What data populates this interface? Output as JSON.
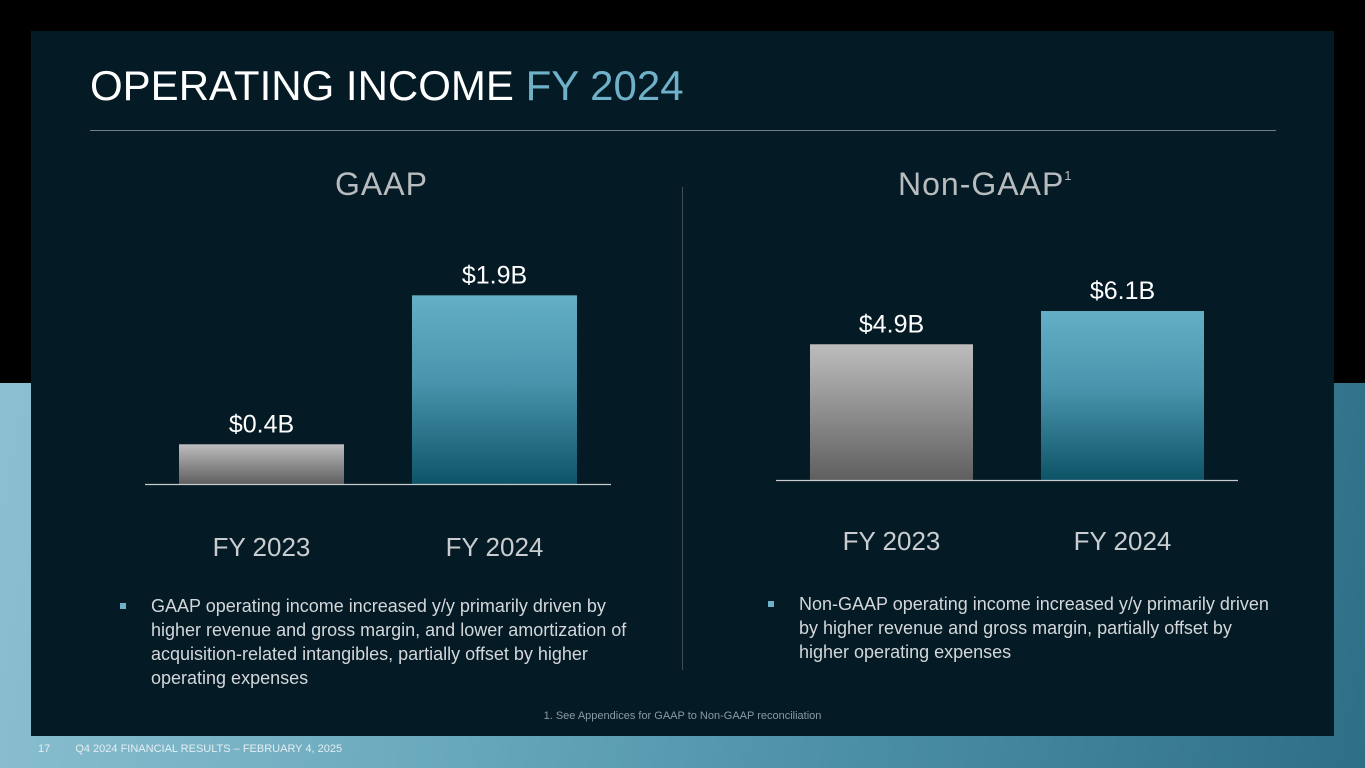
{
  "slide": {
    "title_main": "OPERATING INCOME",
    "title_accent": "FY 2024",
    "page_number": "17",
    "footer_text": "Q4 2024 FINANCIAL RESULTS – FEBRUARY 4, 2025",
    "footnote": "1. See Appendices for GAAP to Non-GAAP reconciliation"
  },
  "gaap": {
    "heading": "GAAP",
    "bullet": "GAAP operating income increased y/y primarily driven by higher revenue and gross margin, and lower amortization of acquisition-related intangibles, partially offset by higher operating expenses"
  },
  "nongaap": {
    "heading": "Non-GAAP",
    "heading_superscript": "1",
    "bullet": "Non-GAAP operating income increased y/y primarily driven by higher revenue and gross margin, partially offset by higher operating expenses"
  },
  "colors": {
    "accent": "#6fb1c9",
    "panel": "#041a25",
    "bar_prior": "#8a8a8a",
    "bar_current": "#5fa9c0"
  },
  "chart_data": [
    {
      "type": "bar",
      "title": "GAAP",
      "categories": [
        "FY 2023",
        "FY 2024"
      ],
      "values": [
        0.4,
        1.9
      ],
      "data_labels": [
        "$0.4B",
        "$1.9B"
      ],
      "unit": "$B",
      "ylim": [
        0,
        2.5
      ]
    },
    {
      "type": "bar",
      "title": "Non-GAAP",
      "categories": [
        "FY 2023",
        "FY 2024"
      ],
      "values": [
        4.9,
        6.1
      ],
      "data_labels": [
        "$4.9B",
        "$6.1B"
      ],
      "unit": "$B",
      "ylim": [
        0,
        6.5
      ]
    }
  ]
}
